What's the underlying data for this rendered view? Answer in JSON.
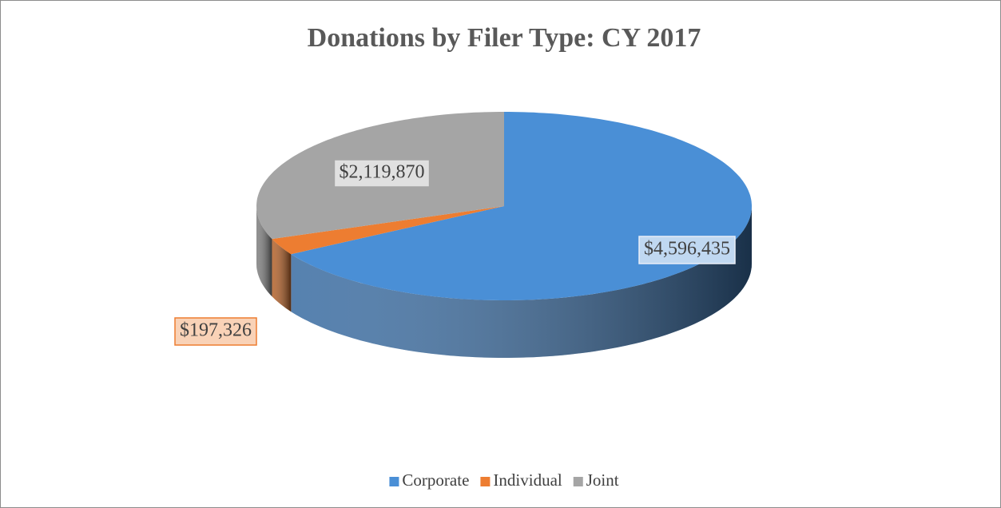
{
  "chart_data": {
    "type": "pie3d",
    "title": "Donations by Filer Type: CY 2017",
    "categories": [
      "Corporate",
      "Individual",
      "Joint"
    ],
    "values": [
      4596435,
      197326,
      2119870
    ],
    "value_labels": [
      "$4,596,435",
      "$197,326",
      "$2,119,870"
    ],
    "colors": [
      "#4a8fd6",
      "#ed7d31",
      "#a5a5a5"
    ],
    "legend": "bottom"
  }
}
